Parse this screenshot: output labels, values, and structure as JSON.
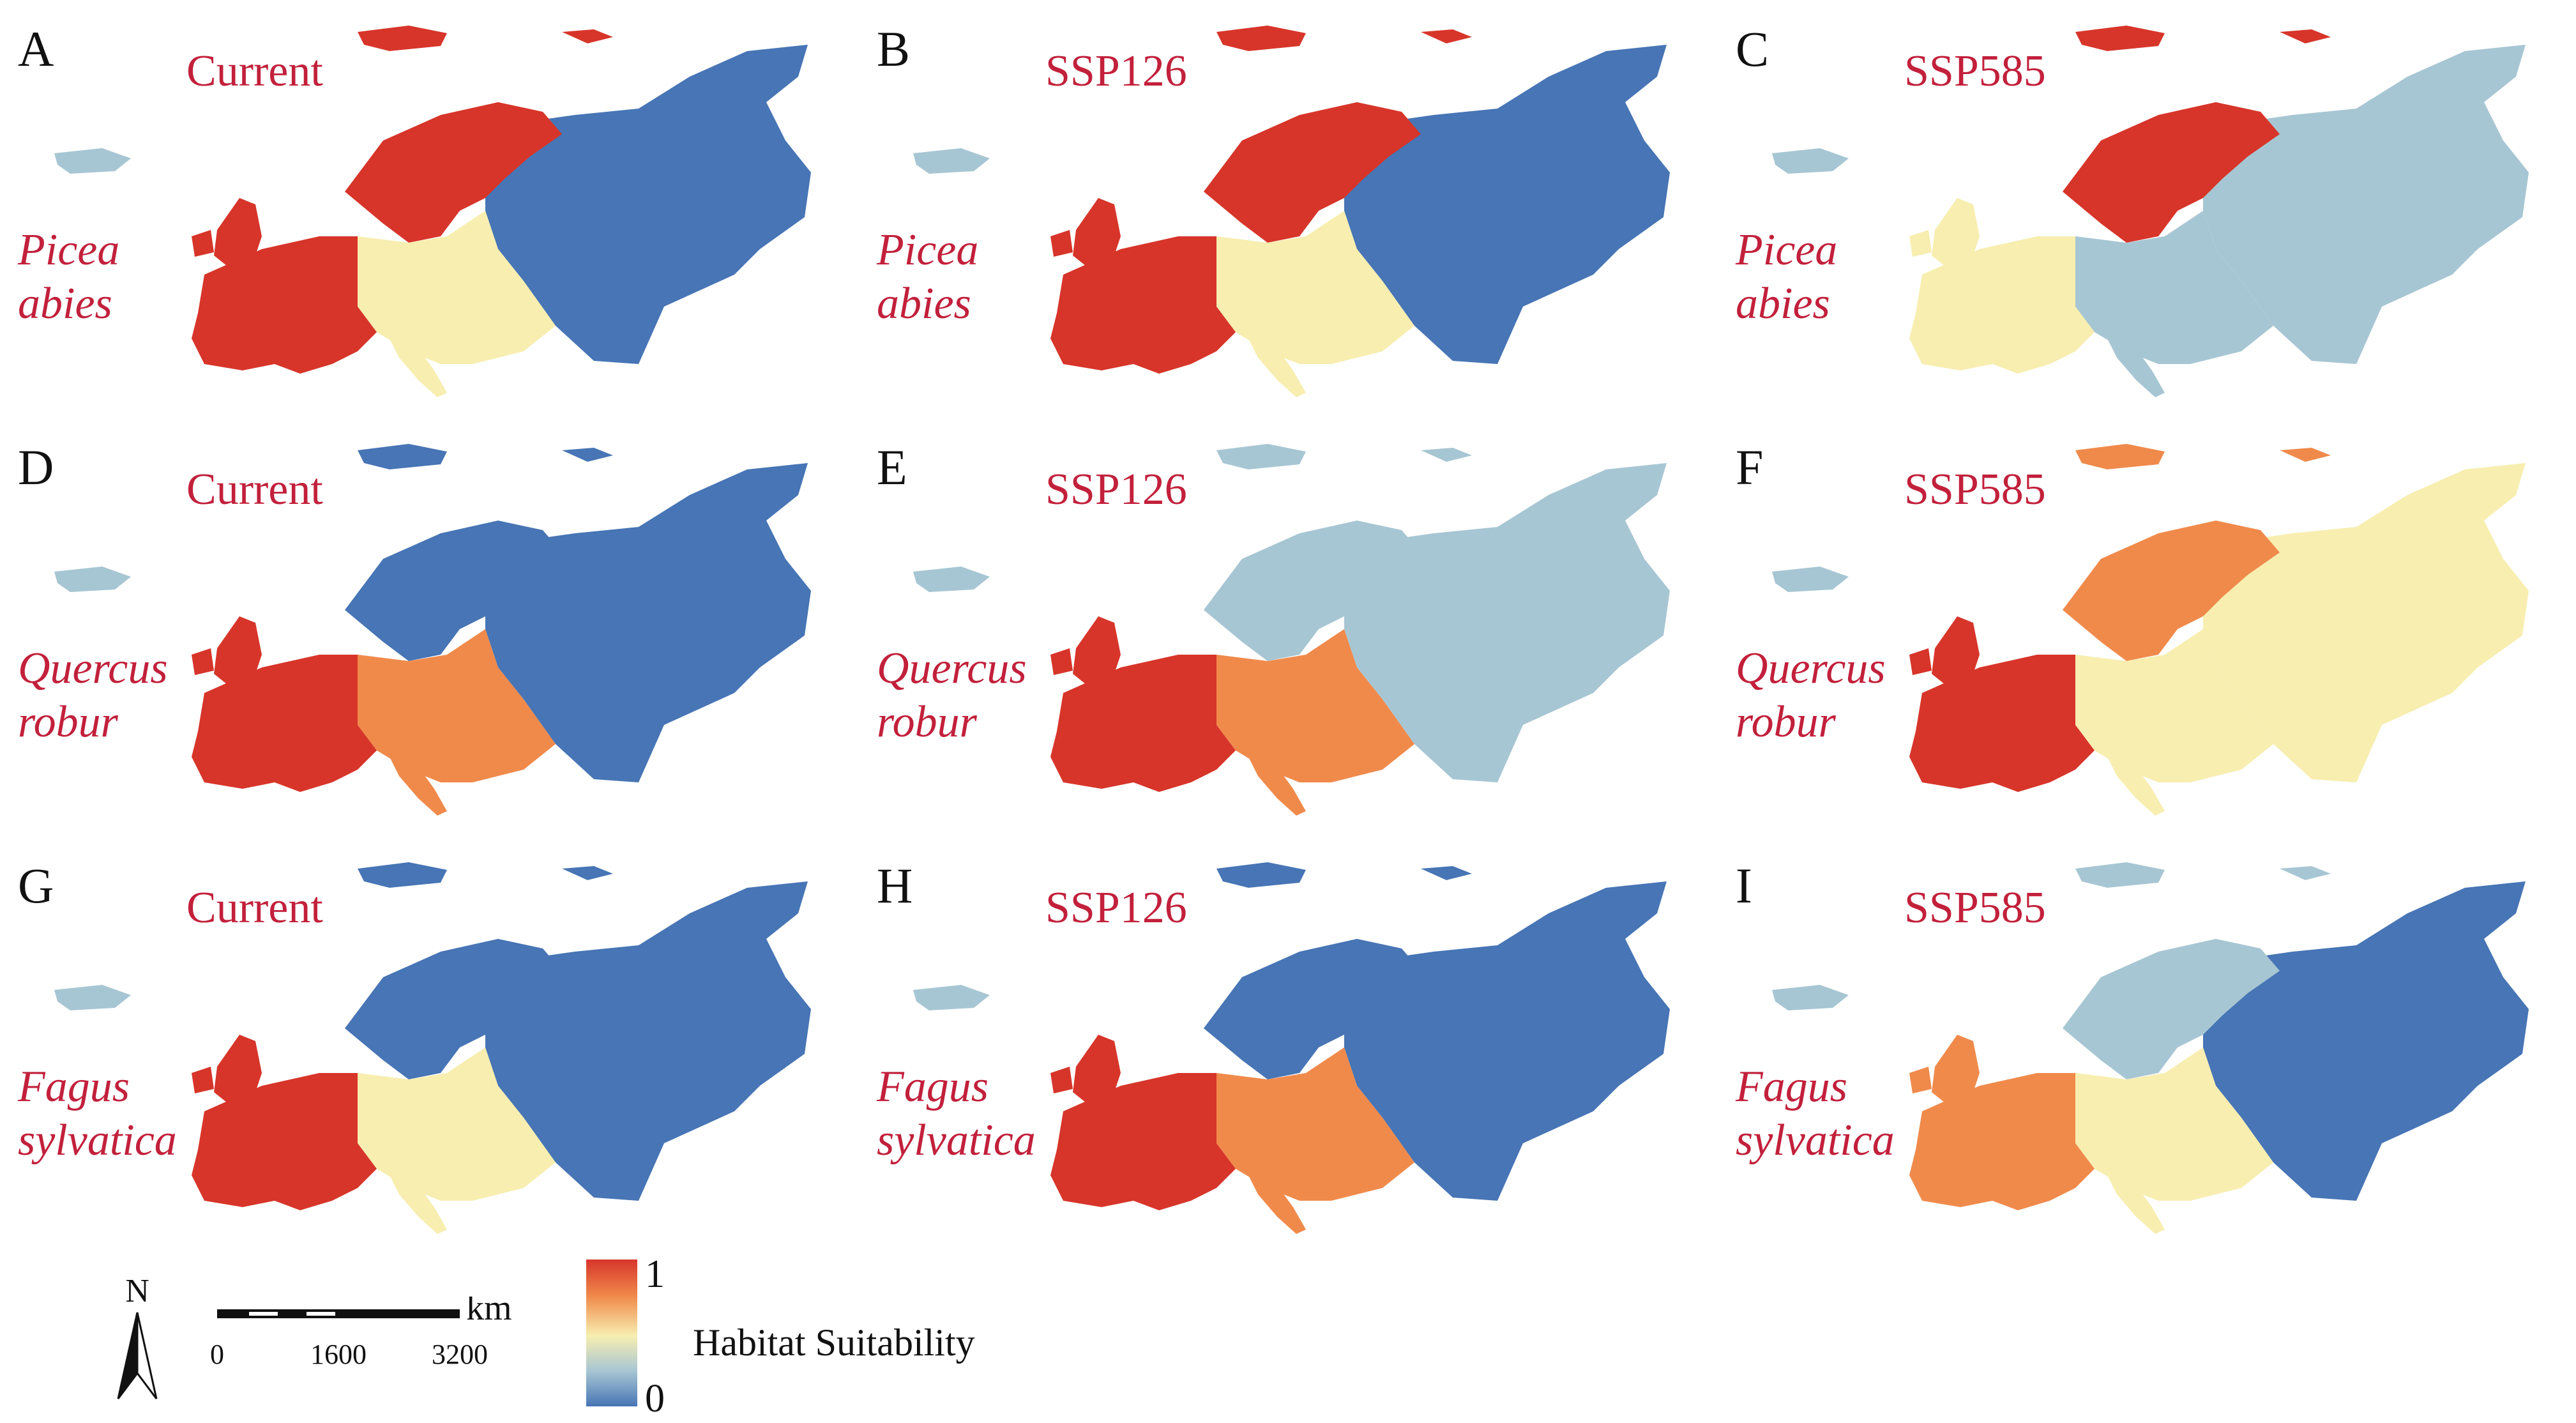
{
  "figure": {
    "panels": [
      {
        "letter": "A",
        "scenario": "Current",
        "species_line1": "Picea",
        "species_line2": "abies"
      },
      {
        "letter": "B",
        "scenario": "SSP126",
        "species_line1": "Picea",
        "species_line2": "abies"
      },
      {
        "letter": "C",
        "scenario": "SSP585",
        "species_line1": "Picea",
        "species_line2": "abies"
      },
      {
        "letter": "D",
        "scenario": "Current",
        "species_line1": "Quercus",
        "species_line2": "robur"
      },
      {
        "letter": "E",
        "scenario": "SSP126",
        "species_line1": "Quercus",
        "species_line2": "robur"
      },
      {
        "letter": "F",
        "scenario": "SSP585",
        "species_line1": "Quercus",
        "species_line2": "robur"
      },
      {
        "letter": "G",
        "scenario": "Current",
        "species_line1": "Fagus",
        "species_line2": "sylvatica"
      },
      {
        "letter": "H",
        "scenario": "SSP126",
        "species_line1": "Fagus",
        "species_line2": "sylvatica"
      },
      {
        "letter": "I",
        "scenario": "SSP585",
        "species_line1": "Fagus",
        "species_line2": "sylvatica"
      }
    ]
  },
  "legend": {
    "north_label": "N",
    "scale_unit": "km",
    "scale_ticks": [
      "0",
      "1600",
      "3200"
    ],
    "colorbar_max": "1",
    "colorbar_min": "0",
    "colorbar_title": "Habitat Suitability"
  },
  "colors": {
    "high": "#d7352a",
    "mid_high": "#f08a4b",
    "mid": "#f7eeb0",
    "mid_low": "#a7c6d3",
    "low": "#4775b5",
    "label_red": "#c2203b"
  },
  "map_patterns": {
    "A": {
      "west": "high",
      "north": "high",
      "center": "mid",
      "east": "low"
    },
    "B": {
      "west": "high",
      "north": "high",
      "center": "mid",
      "east": "low"
    },
    "C": {
      "west": "mid",
      "north": "high",
      "center": "mid_low",
      "east": "mid_low"
    },
    "D": {
      "west": "high",
      "north": "low",
      "center": "mid_high",
      "east": "low"
    },
    "E": {
      "west": "high",
      "north": "mid_low",
      "center": "mid_high",
      "east": "mid_low"
    },
    "F": {
      "west": "high",
      "north": "mid_high",
      "center": "mid",
      "east": "mid"
    },
    "G": {
      "west": "high",
      "north": "low",
      "center": "mid",
      "east": "low"
    },
    "H": {
      "west": "high",
      "north": "low",
      "center": "mid_high",
      "east": "low"
    },
    "I": {
      "west": "mid_high",
      "north": "mid_low",
      "center": "mid",
      "east": "low"
    }
  }
}
